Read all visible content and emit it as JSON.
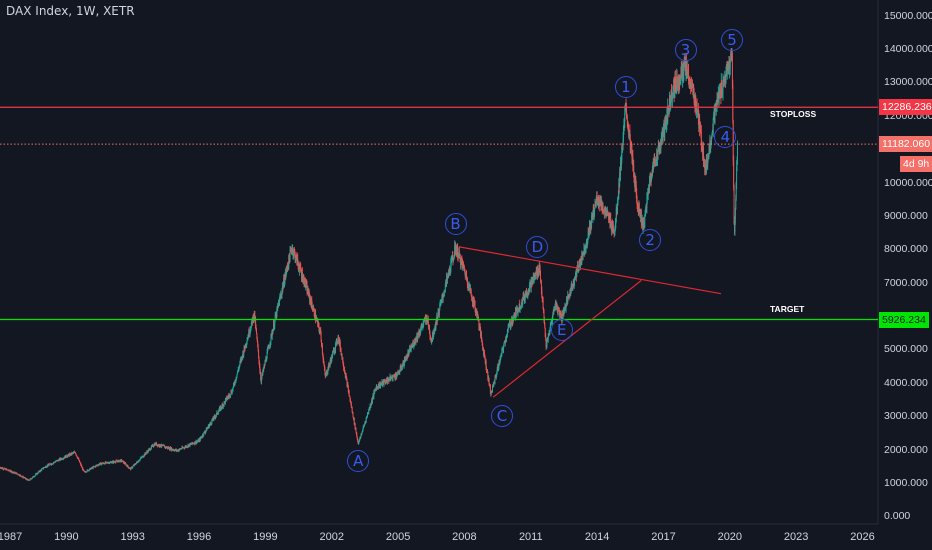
{
  "header": {
    "title": "DAX Index, 1W, XETR"
  },
  "colors": {
    "background": "#131722",
    "candle_up": "#26a69a",
    "candle_down": "#ef5350",
    "stoploss": "#f23645",
    "target": "#00e600",
    "current": "#f57068",
    "wave": "#3a5cf0"
  },
  "chart_data": {
    "type": "candlestick",
    "y_axis": {
      "side": "right",
      "ylim": [
        -200,
        15500
      ],
      "tick_values": [
        0,
        1000,
        2000,
        3000,
        4000,
        5000,
        6000,
        7000,
        8000,
        9000,
        10000,
        11000,
        12000,
        13000,
        14000,
        15000
      ],
      "tick_labels": [
        "0.000",
        "1000.000",
        "2000.000",
        "3000.000",
        "4000.000",
        "5000.000",
        "6000.000",
        "7000.000",
        "8000.000",
        "9000.000",
        "10000.000",
        "11000.000",
        "12000.000",
        "13000.000",
        "14000.000",
        "15000.000"
      ]
    },
    "x_axis": {
      "xlim": [
        1987.0,
        2026.7
      ],
      "tick_values": [
        1987,
        1990,
        1993,
        1996,
        1999,
        2002,
        2005,
        2008,
        2011,
        2014,
        2017,
        2020,
        2023,
        2026
      ],
      "tick_labels": [
        "1987",
        "1990",
        "1993",
        "1996",
        "1999",
        "2002",
        "2005",
        "2008",
        "2011",
        "2014",
        "2017",
        "2020",
        "2023",
        "2026"
      ]
    },
    "price_path": [
      [
        1987.0,
        1500
      ],
      [
        1987.8,
        1300
      ],
      [
        1988.3,
        1100
      ],
      [
        1989.0,
        1500
      ],
      [
        1989.9,
        1800
      ],
      [
        1990.4,
        1950
      ],
      [
        1990.8,
        1350
      ],
      [
        1991.5,
        1600
      ],
      [
        1992.5,
        1700
      ],
      [
        1992.9,
        1450
      ],
      [
        1994.0,
        2200
      ],
      [
        1995.0,
        2000
      ],
      [
        1996.0,
        2300
      ],
      [
        1997.5,
        3800
      ],
      [
        1998.5,
        6100
      ],
      [
        1998.8,
        4100
      ],
      [
        2000.2,
        8100
      ],
      [
        2000.8,
        7000
      ],
      [
        2001.5,
        5500
      ],
      [
        2001.7,
        4200
      ],
      [
        2002.3,
        5400
      ],
      [
        2003.2,
        2200
      ],
      [
        2004.0,
        3900
      ],
      [
        2005.0,
        4300
      ],
      [
        2006.3,
        6000
      ],
      [
        2006.5,
        5300
      ],
      [
        2007.6,
        8100
      ],
      [
        2008.0,
        7400
      ],
      [
        2008.6,
        6000
      ],
      [
        2009.2,
        3700
      ],
      [
        2010.0,
        5700
      ],
      [
        2011.4,
        7500
      ],
      [
        2011.7,
        5100
      ],
      [
        2012.1,
        6400
      ],
      [
        2012.4,
        6000
      ],
      [
        2013.5,
        8200
      ],
      [
        2014.0,
        9600
      ],
      [
        2014.8,
        8600
      ],
      [
        2015.3,
        12300
      ],
      [
        2015.8,
        9500
      ],
      [
        2016.1,
        8700
      ],
      [
        2016.4,
        10200
      ],
      [
        2017.0,
        11500
      ],
      [
        2017.4,
        12800
      ],
      [
        2018.0,
        13500
      ],
      [
        2018.5,
        12300
      ],
      [
        2018.9,
        10400
      ],
      [
        2019.4,
        12400
      ],
      [
        2019.8,
        13200
      ],
      [
        2020.1,
        13800
      ],
      [
        2020.2,
        8300
      ],
      [
        2020.35,
        11200
      ]
    ],
    "levels": [
      {
        "name": "stoploss",
        "value": 12286.236,
        "label": "12286.236",
        "note": "STOPLOSS"
      },
      {
        "name": "target",
        "value": 5926.234,
        "label": "5926.234",
        "note": "TARGET"
      },
      {
        "name": "current",
        "value": 11182.06,
        "label": "11182.060",
        "countdown": "4d 9h"
      }
    ],
    "trendlines": [
      {
        "from": [
          2007.8,
          8100
        ],
        "to": [
          2019.6,
          6700
        ]
      },
      {
        "from": [
          2009.3,
          3600
        ],
        "to": [
          2016.0,
          7100
        ]
      }
    ],
    "wave_labels": [
      {
        "text": "A",
        "x": 2003.2,
        "y": 1700
      },
      {
        "text": "B",
        "x": 2007.6,
        "y": 8800
      },
      {
        "text": "C",
        "x": 2009.7,
        "y": 3050
      },
      {
        "text": "D",
        "x": 2011.3,
        "y": 8100
      },
      {
        "text": "E",
        "x": 2012.4,
        "y": 5600
      },
      {
        "text": "1",
        "x": 2015.3,
        "y": 12900
      },
      {
        "text": "2",
        "x": 2016.4,
        "y": 8300
      },
      {
        "text": "3",
        "x": 2018.0,
        "y": 14000
      },
      {
        "text": "4",
        "x": 2019.8,
        "y": 11400
      },
      {
        "text": "5",
        "x": 2020.1,
        "y": 14300
      }
    ]
  }
}
